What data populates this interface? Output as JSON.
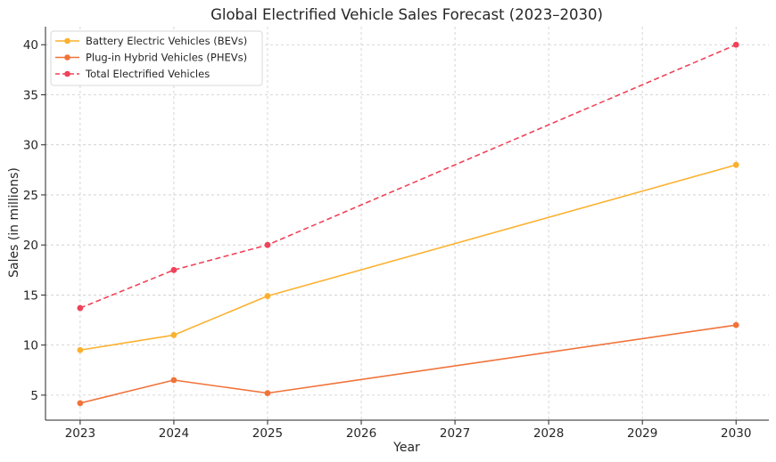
{
  "chart_data": {
    "type": "line",
    "title": "Global Electrified Vehicle Sales Forecast (2023–2030)",
    "xlabel": "Year",
    "ylabel": "Sales (in millions)",
    "x_ticks": [
      "2023",
      "2024",
      "2025",
      "2026",
      "2027",
      "2028",
      "2029",
      "2030"
    ],
    "y_ticks": [
      "5",
      "10",
      "15",
      "20",
      "25",
      "30",
      "35",
      "40"
    ],
    "xlim": [
      2022.63,
      2030.35
    ],
    "ylim": [
      2.5,
      41.8
    ],
    "grid": true,
    "legend_position": "top-left",
    "series": [
      {
        "name": "Battery Electric Vehicles (BEVs)",
        "color": "#fbb12e",
        "dashed": false,
        "x": [
          2023,
          2024,
          2025,
          2030
        ],
        "values": [
          9.5,
          11.0,
          14.9,
          28.0
        ]
      },
      {
        "name": "Plug-in Hybrid Vehicles (PHEVs)",
        "color": "#f0733a",
        "dashed": false,
        "x": [
          2023,
          2024,
          2025,
          2030
        ],
        "values": [
          4.2,
          6.5,
          5.2,
          12.0
        ]
      },
      {
        "name": "Total Electrified Vehicles",
        "color": "#ef4359",
        "dashed": true,
        "x": [
          2023,
          2024,
          2025,
          2030
        ],
        "values": [
          13.7,
          17.5,
          20.0,
          40.0
        ]
      }
    ]
  }
}
